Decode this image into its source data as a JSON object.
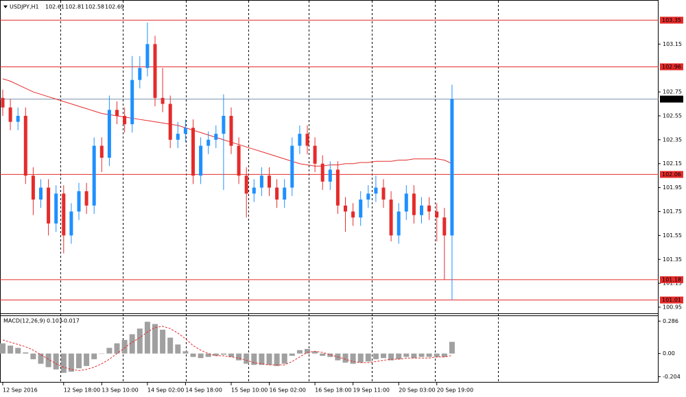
{
  "chart_data": {
    "type": "candlestick",
    "title": "USDJPY,H1",
    "header_ohlc": [
      102.61,
      102.81,
      102.58,
      102.69
    ],
    "up_color": "#1e90ff",
    "down_color": "#e52b2b",
    "categories": [
      "12 Sep 2016",
      null,
      null,
      null,
      null,
      null,
      null,
      null,
      "12 Sep 18:00",
      null,
      null,
      null,
      null,
      "13 Sep 10:00",
      null,
      null,
      null,
      null,
      null,
      "14 Sep 02:00",
      null,
      null,
      null,
      null,
      "14 Sep 18:00",
      null,
      null,
      null,
      null,
      null,
      "15 Sep 10:00",
      null,
      null,
      null,
      null,
      "16 Sep 02:00",
      null,
      null,
      null,
      null,
      null,
      "16 Sep 18:00",
      null,
      null,
      null,
      null,
      "19 Sep 11:00",
      null,
      null,
      null,
      null,
      null,
      "20 Sep 03:00",
      null,
      null,
      null,
      null,
      "20 Sep 19:00",
      null,
      null
    ],
    "open": [
      102.7,
      102.62,
      102.5,
      102.55,
      102.05,
      101.85,
      101.95,
      101.65,
      101.9,
      101.55,
      101.75,
      101.92,
      101.8,
      102.3,
      102.2,
      102.6,
      102.55,
      102.48,
      102.85,
      102.95,
      103.15,
      102.7,
      102.65,
      102.35,
      102.4,
      102.45,
      102.05,
      102.3,
      102.35,
      102.4,
      102.55,
      102.3,
      102.05,
      101.9,
      101.95,
      102.05,
      101.95,
      101.85,
      101.95,
      102.3,
      102.4,
      102.3,
      102.15,
      102.0,
      102.1,
      101.8,
      101.75,
      101.7,
      101.85,
      101.9,
      101.95,
      101.85,
      101.55,
      101.75,
      101.9,
      101.72,
      101.8,
      101.75,
      101.7,
      101.55
    ],
    "high": [
      102.77,
      102.69,
      102.62,
      102.62,
      102.12,
      102.02,
      102.02,
      101.97,
      101.97,
      101.82,
      101.99,
      101.99,
      102.37,
      102.37,
      102.72,
      102.67,
      102.62,
      103.05,
      103.05,
      103.33,
      103.22,
      102.95,
      102.72,
      102.5,
      102.52,
      102.52,
      102.37,
      102.42,
      102.47,
      102.73,
      102.62,
      102.37,
      102.12,
      102.02,
      102.12,
      102.12,
      102.02,
      102.02,
      102.37,
      102.47,
      102.47,
      102.37,
      102.22,
      102.17,
      102.17,
      101.87,
      101.82,
      101.92,
      101.97,
      102.05,
      102.02,
      101.92,
      101.82,
      101.97,
      101.97,
      101.87,
      101.87,
      101.82,
      101.78,
      102.81
    ],
    "low": [
      102.55,
      102.43,
      102.43,
      101.98,
      101.72,
      101.78,
      101.55,
      101.58,
      101.4,
      101.48,
      101.68,
      101.73,
      101.73,
      102.08,
      102.13,
      102.48,
      102.41,
      102.41,
      102.78,
      102.88,
      102.63,
      102.58,
      102.28,
      102.28,
      102.33,
      101.98,
      101.98,
      102.23,
      102.28,
      101.93,
      102.23,
      101.98,
      101.7,
      101.83,
      101.88,
      101.88,
      101.78,
      101.78,
      101.88,
      102.23,
      102.23,
      102.08,
      101.93,
      101.93,
      101.73,
      101.58,
      101.63,
      101.63,
      101.78,
      101.83,
      101.78,
      101.5,
      101.48,
      101.68,
      101.65,
      101.65,
      101.68,
      101.5,
      101.18,
      101.01
    ],
    "close": [
      102.62,
      102.5,
      102.55,
      102.05,
      101.85,
      101.95,
      101.65,
      101.9,
      101.55,
      101.75,
      101.92,
      101.8,
      102.3,
      102.2,
      102.6,
      102.55,
      102.48,
      102.85,
      102.95,
      103.15,
      102.7,
      102.65,
      102.35,
      102.4,
      102.45,
      102.05,
      102.3,
      102.35,
      102.4,
      102.55,
      102.3,
      102.05,
      101.9,
      101.95,
      102.05,
      101.95,
      101.85,
      101.95,
      102.3,
      102.4,
      102.3,
      102.15,
      102.0,
      102.1,
      101.8,
      101.75,
      101.7,
      101.85,
      101.9,
      101.95,
      101.85,
      101.55,
      101.75,
      101.9,
      101.72,
      101.8,
      101.75,
      101.7,
      101.55,
      102.69
    ],
    "ma": {
      "color": "#e52b2b",
      "values": [
        102.86,
        102.84,
        102.81,
        102.78,
        102.75,
        102.73,
        102.71,
        102.69,
        102.67,
        102.65,
        102.63,
        102.61,
        102.59,
        102.57,
        102.56,
        102.55,
        102.54,
        102.53,
        102.52,
        102.51,
        102.5,
        102.49,
        102.48,
        102.47,
        102.45,
        102.43,
        102.41,
        102.39,
        102.37,
        102.35,
        102.33,
        102.31,
        102.29,
        102.27,
        102.25,
        102.23,
        102.21,
        102.19,
        102.17,
        102.15,
        102.14,
        102.13,
        102.13,
        102.14,
        102.14,
        102.15,
        102.15,
        102.16,
        102.16,
        102.17,
        102.17,
        102.17,
        102.18,
        102.18,
        102.19,
        102.19,
        102.19,
        102.19,
        102.18,
        102.15
      ]
    },
    "ylim": [
      100.91,
      103.49
    ],
    "yticks": [
      103.15,
      102.75,
      102.55,
      102.35,
      102.15,
      101.95,
      101.75,
      101.55,
      101.35,
      101.15,
      100.95
    ],
    "levels": {
      "color": "#e52b2b",
      "values": [
        103.35,
        102.96,
        102.06,
        101.18,
        101.01
      ]
    },
    "current_price": {
      "color": "#7f95b0",
      "value": 102.69
    },
    "macd": {
      "label": "MACD(12,26,9)",
      "color": "#a0a0a0",
      "signal_color": "#e52b2b",
      "ylim": [
        -0.25,
        0.33
      ],
      "yticks": [
        0.286,
        {
          "value": 0,
          "label": "0.00"
        },
        -0.204
      ],
      "values": [
        0.09,
        0.07,
        0.05,
        0.01,
        -0.05,
        -0.09,
        -0.12,
        -0.14,
        -0.17,
        -0.16,
        -0.13,
        -0.11,
        -0.05,
        0.0,
        0.05,
        0.09,
        0.12,
        0.17,
        0.22,
        0.28,
        0.26,
        0.21,
        0.14,
        0.08,
        0.02,
        -0.03,
        -0.04,
        -0.03,
        -0.02,
        -0.01,
        -0.03,
        -0.06,
        -0.09,
        -0.1,
        -0.1,
        -0.1,
        -0.11,
        -0.09,
        -0.02,
        0.03,
        0.04,
        0.02,
        -0.02,
        -0.03,
        -0.06,
        -0.08,
        -0.09,
        -0.08,
        -0.07,
        -0.05,
        -0.04,
        -0.06,
        -0.05,
        -0.03,
        -0.04,
        -0.03,
        -0.03,
        -0.03,
        -0.03,
        0.103
      ],
      "signal": [
        0.12,
        0.1,
        0.08,
        0.06,
        0.03,
        -0.01,
        -0.05,
        -0.09,
        -0.12,
        -0.14,
        -0.15,
        -0.14,
        -0.12,
        -0.09,
        -0.05,
        0.0,
        0.05,
        0.1,
        0.14,
        0.19,
        0.23,
        0.24,
        0.22,
        0.18,
        0.13,
        0.07,
        0.03,
        0.0,
        -0.02,
        -0.02,
        -0.03,
        -0.04,
        -0.06,
        -0.08,
        -0.09,
        -0.1,
        -0.1,
        -0.1,
        -0.07,
        -0.03,
        0.01,
        0.02,
        0.01,
        -0.01,
        -0.03,
        -0.05,
        -0.07,
        -0.08,
        -0.08,
        -0.07,
        -0.06,
        -0.05,
        -0.05,
        -0.04,
        -0.04,
        -0.04,
        -0.04,
        -0.03,
        -0.03,
        -0.017
      ]
    }
  }
}
